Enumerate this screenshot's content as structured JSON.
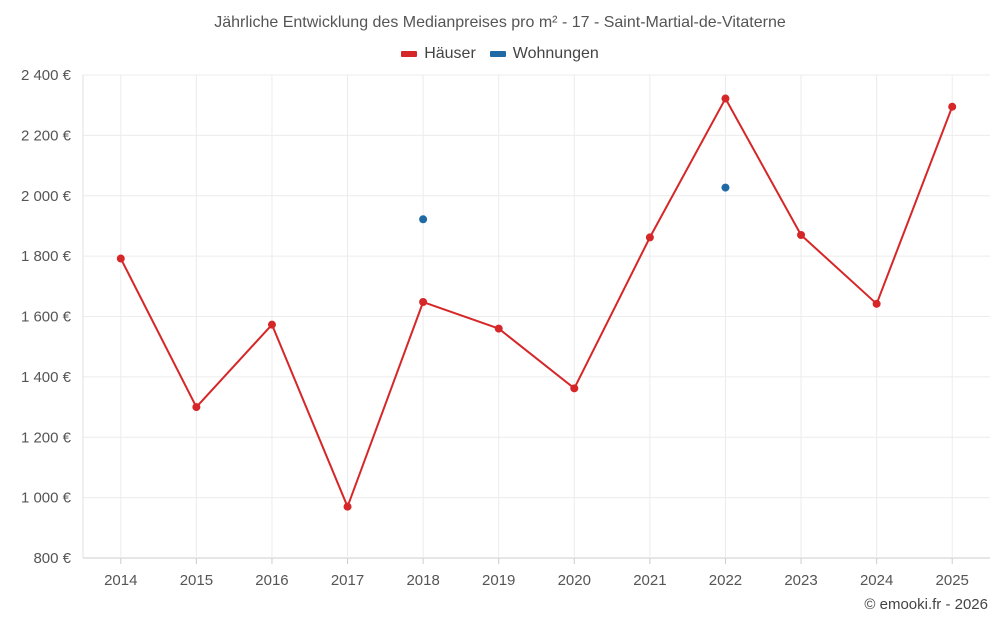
{
  "chart_data": {
    "type": "line",
    "title": "Jährliche Entwicklung des Medianpreises pro m² - 17 - Saint-Martial-de-Vitaterne",
    "categories": [
      "2014",
      "2015",
      "2016",
      "2017",
      "2018",
      "2019",
      "2020",
      "2021",
      "2022",
      "2023",
      "2024",
      "2025"
    ],
    "series": [
      {
        "name": "Häuser",
        "color": "#d62728",
        "values": [
          1792,
          1300,
          1573,
          970,
          1648,
          1560,
          1362,
          1862,
          2322,
          1870,
          1642,
          2295
        ]
      },
      {
        "name": "Wohnungen",
        "color": "#1f6aa5",
        "values": [
          null,
          null,
          null,
          null,
          1922,
          null,
          null,
          null,
          2027,
          null,
          null,
          null
        ]
      }
    ],
    "ylim": [
      800,
      2400
    ],
    "yticks": [
      800,
      1000,
      1200,
      1400,
      1600,
      1800,
      2000,
      2200,
      2400
    ],
    "ytick_labels": [
      "800 €",
      "1 000 €",
      "1 200 €",
      "1 400 €",
      "1 600 €",
      "1 800 €",
      "2 000 €",
      "2 200 €",
      "2 400 €"
    ],
    "grid": true,
    "legend_position": "top-center",
    "xlabel": "",
    "ylabel": ""
  },
  "credit": "© emooki.fr - 2026"
}
